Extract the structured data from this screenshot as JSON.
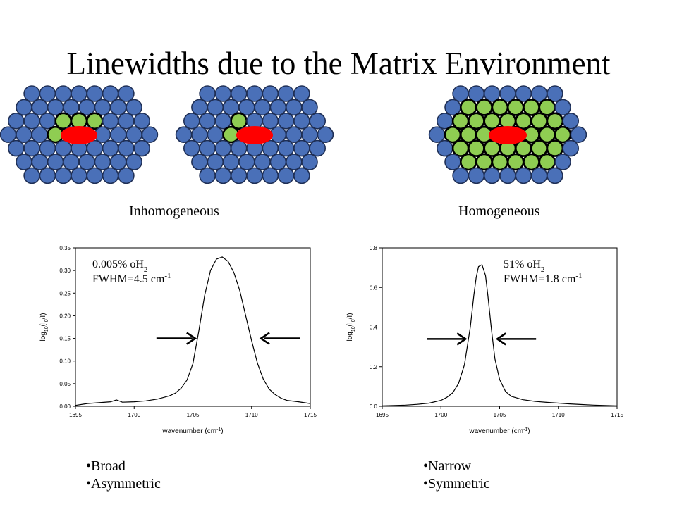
{
  "title": "Linewidths due to the Matrix Environment",
  "captions": {
    "left": "Inhomogeneous",
    "right": "Homogeneous"
  },
  "colors": {
    "matrix_sphere": "#4a70b8",
    "neighbor_sphere": "#8fcd52",
    "guest_molecule": "#ff0000",
    "outline": "#1f2f55"
  },
  "bullets_left": [
    "Broad",
    "Asymmetric"
  ],
  "bullets_right": [
    "Narrow",
    "Symmetric"
  ],
  "chart_data": [
    {
      "type": "line",
      "annotation": {
        "line1_main": "0.005% oH",
        "line1_sub": "2",
        "line2_main": "FWHM=4.5 cm",
        "line2_sup": "-1"
      },
      "xlabel": {
        "main": "wavenumber (cm",
        "sup": "-1",
        "tail": ")"
      },
      "ylabel": {
        "p1": "log",
        "s1": "10",
        "p2": "(I",
        "s2": "0",
        "p3": "/I)"
      },
      "xlim": [
        1695,
        1715
      ],
      "ylim": [
        0,
        0.35
      ],
      "xticks": [
        "1695",
        "1700",
        "1705",
        "1710",
        "1715"
      ],
      "yticks": [
        "0.00",
        "0.05",
        "0.10",
        "0.15",
        "0.20",
        "0.25",
        "0.30",
        "0.35"
      ],
      "fwhm_arrows": {
        "left_head_at": 1705.2,
        "right_head_at": 1710.8,
        "level": 0.15
      },
      "series": [
        {
          "x": [
            1695,
            1696,
            1697,
            1698,
            1698.5,
            1699,
            1700,
            1701,
            1702,
            1703,
            1703.5,
            1704,
            1704.5,
            1705,
            1705.5,
            1706,
            1706.5,
            1707,
            1707.5,
            1708,
            1708.5,
            1709,
            1709.5,
            1710,
            1710.5,
            1711,
            1711.5,
            1712,
            1712.5,
            1713,
            1714,
            1715
          ],
          "y": [
            0.002,
            0.006,
            0.008,
            0.01,
            0.014,
            0.009,
            0.01,
            0.012,
            0.016,
            0.023,
            0.029,
            0.04,
            0.058,
            0.094,
            0.165,
            0.245,
            0.3,
            0.325,
            0.33,
            0.32,
            0.295,
            0.255,
            0.2,
            0.145,
            0.095,
            0.06,
            0.038,
            0.026,
            0.018,
            0.013,
            0.01,
            0.006
          ]
        }
      ]
    },
    {
      "type": "line",
      "annotation": {
        "line1_main": "51% oH",
        "line1_sub": "2",
        "line2_main": "FWHM=1.8 cm",
        "line2_sup": "-1"
      },
      "xlabel": {
        "main": "wavenumber (cm",
        "sup": "-1",
        "tail": ")"
      },
      "ylabel": {
        "p1": "log",
        "s1": "10",
        "p2": "(I",
        "s2": "0",
        "p3": "/I)"
      },
      "xlim": [
        1695,
        1715
      ],
      "ylim": [
        0,
        0.8
      ],
      "xticks": [
        "1695",
        "1700",
        "1705",
        "1710",
        "1715"
      ],
      "yticks": [
        "0.0",
        "0.2",
        "0.4",
        "0.6",
        "0.8"
      ],
      "fwhm_arrows": {
        "left_head_at": 1702.1,
        "right_head_at": 1704.8,
        "level": 0.34
      },
      "series": [
        {
          "x": [
            1695,
            1696,
            1697,
            1698,
            1699,
            1700,
            1700.5,
            1701,
            1701.5,
            1702,
            1702.5,
            1702.8,
            1703,
            1703.2,
            1703.5,
            1703.8,
            1704,
            1704.3,
            1704.6,
            1705,
            1705.5,
            1706,
            1707,
            1708,
            1709,
            1710,
            1711,
            1712,
            1713,
            1714,
            1715
          ],
          "y": [
            0.002,
            0.004,
            0.006,
            0.01,
            0.016,
            0.03,
            0.045,
            0.068,
            0.115,
            0.21,
            0.4,
            0.56,
            0.65,
            0.705,
            0.715,
            0.66,
            0.56,
            0.39,
            0.24,
            0.135,
            0.075,
            0.05,
            0.033,
            0.025,
            0.02,
            0.016,
            0.012,
            0.009,
            0.006,
            0.004,
            0.002
          ]
        }
      ]
    }
  ]
}
